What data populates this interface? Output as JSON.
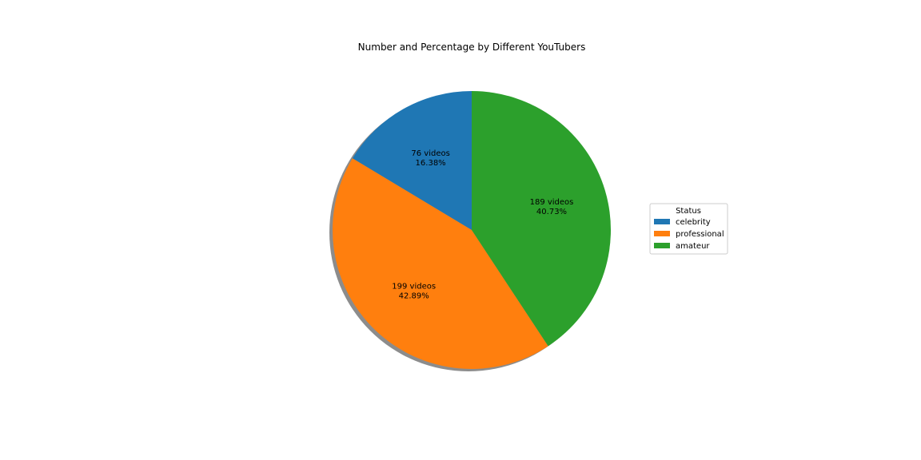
{
  "chart_data": {
    "type": "pie",
    "title": "Number and Percentage by Different YouTubers",
    "categories": [
      "celebrity",
      "professional",
      "amateur"
    ],
    "values": [
      76,
      199,
      189
    ],
    "percentages": [
      "16.38%",
      "42.89%",
      "40.73%"
    ],
    "slice_labels": [
      {
        "count": "76 videos",
        "percent": "16.38%"
      },
      {
        "count": "199 videos",
        "percent": "42.89%"
      },
      {
        "count": "189 videos",
        "percent": "40.73%"
      }
    ],
    "colors": [
      "#1f77b4",
      "#ff7f0e",
      "#2ca02c"
    ],
    "shadow_color": "#8c8c8c",
    "start_angle": 90,
    "direction": "counterclockwise",
    "shadow": true,
    "legend": {
      "title": "Status",
      "placement": "right",
      "entries": [
        "celebrity",
        "professional",
        "amateur"
      ]
    }
  }
}
